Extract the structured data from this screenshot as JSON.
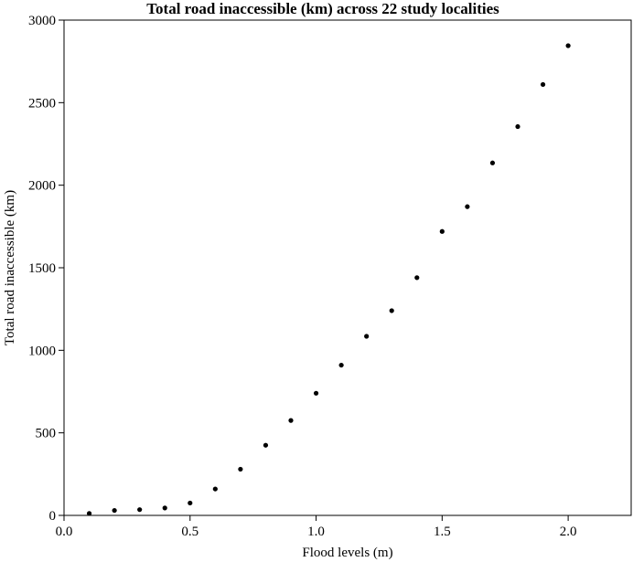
{
  "chart_data": {
    "type": "scatter",
    "title": "Total road inaccessible (km) across 22 study localities",
    "xlabel": "Flood levels (m)",
    "ylabel": "Total road inaccessible (km)",
    "xlim": [
      0.0,
      2.25
    ],
    "ylim": [
      0,
      3000
    ],
    "xticks": [
      "0.0",
      "0.5",
      "1.0",
      "1.5",
      "2.0"
    ],
    "yticks": [
      "0",
      "500",
      "1000",
      "1500",
      "2000",
      "2500",
      "3000"
    ],
    "grid": false,
    "legend": "none",
    "series": [
      {
        "x": [
          0.1,
          0.2,
          0.3,
          0.4,
          0.5,
          0.6,
          0.7,
          0.8,
          0.9,
          1.0,
          1.1,
          1.2,
          1.3,
          1.4,
          1.5,
          1.6,
          1.7,
          1.8,
          1.9,
          2.0
        ],
        "y": [
          12,
          30,
          35,
          45,
          75,
          160,
          280,
          425,
          575,
          740,
          910,
          1085,
          1240,
          1440,
          1720,
          1870,
          2135,
          2355,
          2610,
          2845
        ]
      }
    ],
    "marker_color": "#000000",
    "axis_color": "#000000"
  }
}
